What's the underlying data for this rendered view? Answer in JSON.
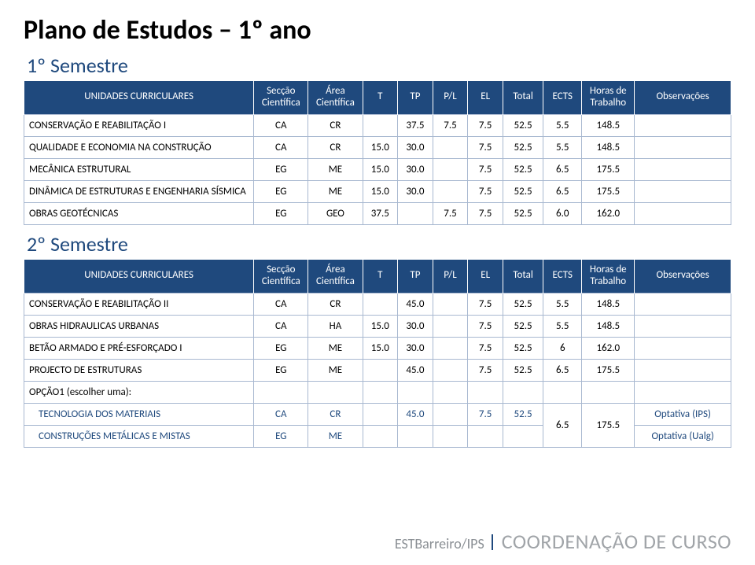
{
  "title": "Plano de Estudos – 1º ano",
  "sem1_title": "1º Semestre",
  "sem2_title": "2º Semestre",
  "headers": {
    "name": "UNIDADES CURRICULARES",
    "sec": "Secção Científica",
    "area": "Área Científica",
    "t": "T",
    "tp": "TP",
    "pl": "P/L",
    "el": "EL",
    "total": "Total",
    "ects": "ECTS",
    "hrs": "Horas de Trabalho",
    "obs": "Observações"
  },
  "sem1": [
    {
      "name": "CONSERVAÇÃO E REABILITAÇÃO I",
      "sec": "CA",
      "area": "CR",
      "t": "",
      "tp": "37.5",
      "pl": "7.5",
      "el": "7.5",
      "total": "52.5",
      "ects": "5.5",
      "hrs": "148.5",
      "obs": ""
    },
    {
      "name": "QUALIDADE E ECONOMIA NA CONSTRUÇÃO",
      "sec": "CA",
      "area": "CR",
      "t": "15.0",
      "tp": "30.0",
      "pl": "",
      "el": "7.5",
      "total": "52.5",
      "ects": "5.5",
      "hrs": "148.5",
      "obs": ""
    },
    {
      "name": "MECÂNICA ESTRUTURAL",
      "sec": "EG",
      "area": "ME",
      "t": "15.0",
      "tp": "30.0",
      "pl": "",
      "el": "7.5",
      "total": "52.5",
      "ects": "6.5",
      "hrs": "175.5",
      "obs": ""
    },
    {
      "name": "DINÂMICA DE ESTRUTURAS E ENGENHARIA SÍSMICA",
      "sec": "EG",
      "area": "ME",
      "t": "15.0",
      "tp": "30.0",
      "pl": "",
      "el": "7.5",
      "total": "52.5",
      "ects": "6.5",
      "hrs": "175.5",
      "obs": ""
    },
    {
      "name": "OBRAS GEOTÉCNICAS",
      "sec": "EG",
      "area": "GEO",
      "t": "37.5",
      "tp": "",
      "pl": "7.5",
      "el": "7.5",
      "total": "52.5",
      "ects": "6.0",
      "hrs": "162.0",
      "obs": ""
    }
  ],
  "sem2": [
    {
      "name": "CONSERVAÇÃO E REABILITAÇÃO II",
      "sec": "CA",
      "area": "CR",
      "t": "",
      "tp": "45.0",
      "pl": "",
      "el": "7.5",
      "total": "52.5",
      "ects": "5.5",
      "hrs": "148.5",
      "obs": ""
    },
    {
      "name": "OBRAS HIDRAULICAS URBANAS",
      "sec": "CA",
      "area": "HA",
      "t": "15.0",
      "tp": "30.0",
      "pl": "",
      "el": "7.5",
      "total": "52.5",
      "ects": "5.5",
      "hrs": "148.5",
      "obs": ""
    },
    {
      "name": "BETÃO ARMADO E PRÉ-ESFORÇADO I",
      "sec": "EG",
      "area": "ME",
      "t": "15.0",
      "tp": "30.0",
      "pl": "",
      "el": "7.5",
      "total": "52.5",
      "ects": "6",
      "hrs": "162.0",
      "obs": ""
    },
    {
      "name": "PROJECTO DE ESTRUTURAS",
      "sec": "EG",
      "area": "ME",
      "t": "",
      "tp": "45.0",
      "pl": "",
      "el": "7.5",
      "total": "52.5",
      "ects": "6.5",
      "hrs": "175.5",
      "obs": ""
    }
  ],
  "opt_label": "OPÇÃO1 (escolher uma):",
  "opt1": {
    "name": "TECNOLOGIA DOS MATERIAIS",
    "sec": "CA",
    "area": "CR",
    "t": "",
    "tp": "45.0",
    "pl": "",
    "el": "7.5",
    "total": "52.5",
    "obs": "Optativa (IPS)"
  },
  "opt2": {
    "name": "CONSTRUÇÕES METÁLICAS E MISTAS",
    "sec": "EG",
    "area": "ME",
    "obs": "Optativa (Ualg)"
  },
  "opt_shared": {
    "ects": "6.5",
    "hrs": "175.5"
  },
  "footer": {
    "left": "ESTBarreiro/IPS",
    "right": "COORDENAÇÃO DE CURSO"
  }
}
